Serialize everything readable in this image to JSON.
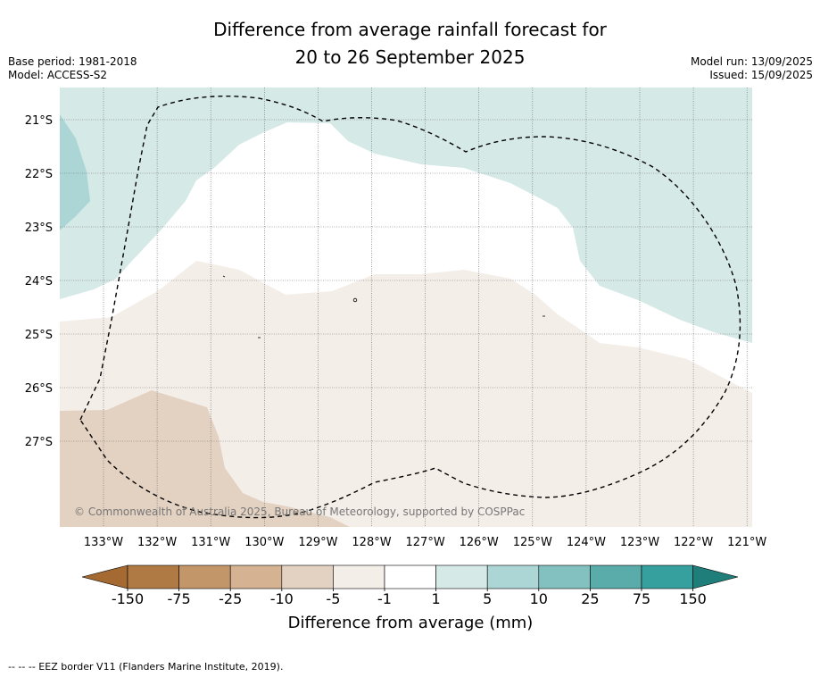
{
  "header": {
    "title_line1": "Difference from average rainfall forecast for",
    "title_line2": "20 to 26 September 2025",
    "base_period": "Base period: 1981-2018",
    "model": "Model: ACCESS-S2",
    "model_run": "Model run: 13/09/2025",
    "issued": "Issued: 15/09/2025"
  },
  "map": {
    "lon_range": [
      -133.8,
      -120.9
    ],
    "lat_range": [
      -20.4,
      -28.6
    ],
    "lat_labels": [
      "21°S",
      "22°S",
      "23°S",
      "24°S",
      "25°S",
      "26°S",
      "27°S"
    ],
    "lon_labels": [
      "133°W",
      "132°W",
      "131°W",
      "130°W",
      "129°W",
      "128°W",
      "127°W",
      "126°W",
      "125°W",
      "124°W",
      "123°W",
      "122°W",
      "121°W"
    ],
    "copyright": "© Commonwealth of Australia 2025, Bureau of Meteorology, supported by COSPPac",
    "colors": {
      "wet_1_5": "#d5e9e7",
      "wet_5_10": "#abd6d5",
      "neutral": "#ffffff",
      "dry_1_5": "#f4eee9",
      "dry_5_10": "#e3d1c1",
      "gridline": "#666666"
    }
  },
  "colorbar": {
    "title": "Difference from average (mm)",
    "tick_labels": [
      "-150",
      "-75",
      "-25",
      "-10",
      "-5",
      "-1",
      "1",
      "5",
      "10",
      "25",
      "75",
      "150"
    ],
    "colors": [
      "#a46a32",
      "#b07a45",
      "#c29669",
      "#d4b292",
      "#e3d1c1",
      "#f4eee9",
      "#ffffff",
      "#d5e9e7",
      "#abd6d5",
      "#82c1bf",
      "#5aacaa",
      "#35a09d",
      "#1f7d7a"
    ]
  },
  "footnote": "--  --  -- EEZ border V11 (Flanders Marine Institute, 2019)."
}
